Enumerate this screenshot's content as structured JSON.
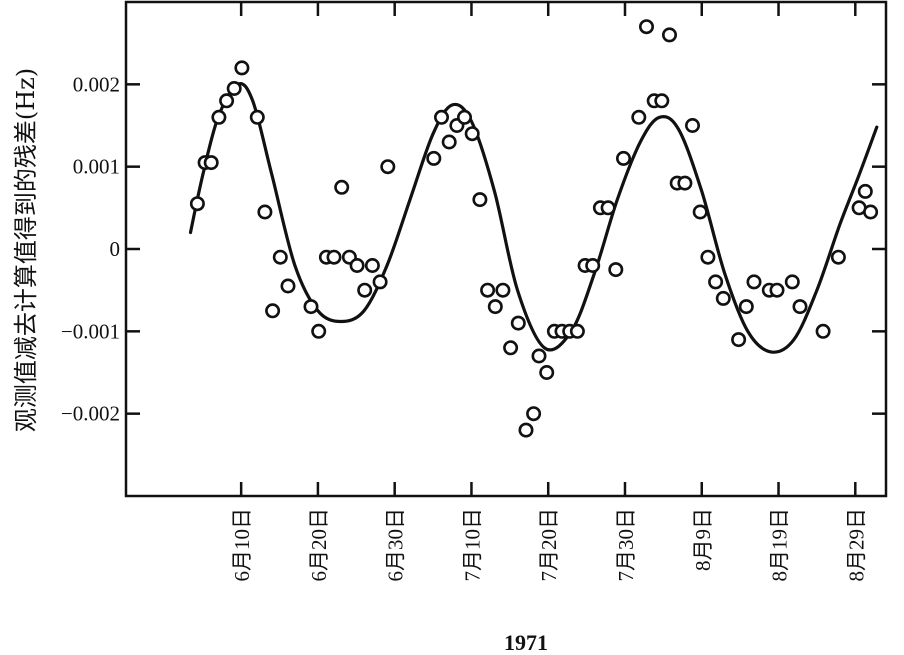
{
  "chart_data": {
    "type": "scatter",
    "title": "",
    "xlabel": "1971",
    "ylabel": "观测值减去计算值得到的残差(Hz)",
    "xlim": [
      146,
      245
    ],
    "ylim": [
      -0.003,
      0.003
    ],
    "grid": false,
    "legend": "none",
    "x_ticks": [
      {
        "day": 161,
        "label": "6月10日"
      },
      {
        "day": 171,
        "label": "6月20日"
      },
      {
        "day": 181,
        "label": "6月30日"
      },
      {
        "day": 191,
        "label": "7月10日"
      },
      {
        "day": 201,
        "label": "7月20日"
      },
      {
        "day": 211,
        "label": "7月30日"
      },
      {
        "day": 221,
        "label": "8月9日"
      },
      {
        "day": 231,
        "label": "8月19日"
      },
      {
        "day": 241,
        "label": "8月29日"
      }
    ],
    "y_ticks": [
      {
        "value": 0.002,
        "label": "0.002"
      },
      {
        "value": 0.001,
        "label": "0.001"
      },
      {
        "value": 0,
        "label": "0"
      },
      {
        "value": -0.001,
        "label": "−0.001"
      },
      {
        "value": -0.002,
        "label": "−0.002"
      }
    ],
    "series": [
      {
        "kind": "scatter",
        "marker": "open-circle",
        "color": "#111111",
        "points": [
          {
            "x": 155.3,
            "y": 0.00055
          },
          {
            "x": 156.3,
            "y": 0.00105
          },
          {
            "x": 157.1,
            "y": 0.00105
          },
          {
            "x": 158.1,
            "y": 0.0016
          },
          {
            "x": 159.1,
            "y": 0.0018
          },
          {
            "x": 160.1,
            "y": 0.00195
          },
          {
            "x": 161.1,
            "y": 0.0022
          },
          {
            "x": 163.1,
            "y": 0.0016
          },
          {
            "x": 164.1,
            "y": 0.00045
          },
          {
            "x": 165.1,
            "y": -0.00075
          },
          {
            "x": 166.1,
            "y": -0.0001
          },
          {
            "x": 167.1,
            "y": -0.00045
          },
          {
            "x": 170.1,
            "y": -0.0007
          },
          {
            "x": 171.1,
            "y": -0.001
          },
          {
            "x": 172.1,
            "y": -0.0001
          },
          {
            "x": 173.1,
            "y": -0.0001
          },
          {
            "x": 174.1,
            "y": 0.00075
          },
          {
            "x": 175.1,
            "y": -0.0001
          },
          {
            "x": 176.1,
            "y": -0.0002
          },
          {
            "x": 177.1,
            "y": -0.0005
          },
          {
            "x": 178.1,
            "y": -0.0002
          },
          {
            "x": 179.1,
            "y": -0.0004
          },
          {
            "x": 180.1,
            "y": 0.001
          },
          {
            "x": 186.1,
            "y": 0.0011
          },
          {
            "x": 187.1,
            "y": 0.0016
          },
          {
            "x": 188.1,
            "y": 0.0013
          },
          {
            "x": 189.1,
            "y": 0.0015
          },
          {
            "x": 190.1,
            "y": 0.0016
          },
          {
            "x": 191.1,
            "y": 0.0014
          },
          {
            "x": 192.1,
            "y": 0.0006
          },
          {
            "x": 193.1,
            "y": -0.0005
          },
          {
            "x": 194.1,
            "y": -0.0007
          },
          {
            "x": 195.1,
            "y": -0.0005
          },
          {
            "x": 196.1,
            "y": -0.0012
          },
          {
            "x": 197.1,
            "y": -0.0009
          },
          {
            "x": 198.1,
            "y": -0.0022
          },
          {
            "x": 199.1,
            "y": -0.002
          },
          {
            "x": 199.8,
            "y": -0.0013
          },
          {
            "x": 200.8,
            "y": -0.0015
          },
          {
            "x": 201.8,
            "y": -0.001
          },
          {
            "x": 202.8,
            "y": -0.001
          },
          {
            "x": 203.8,
            "y": -0.001
          },
          {
            "x": 204.8,
            "y": -0.001
          },
          {
            "x": 205.8,
            "y": -0.0002
          },
          {
            "x": 206.8,
            "y": -0.0002
          },
          {
            "x": 207.8,
            "y": 0.0005
          },
          {
            "x": 208.8,
            "y": 0.0005
          },
          {
            "x": 209.8,
            "y": -0.00025
          },
          {
            "x": 210.8,
            "y": 0.0011
          },
          {
            "x": 212.8,
            "y": 0.0016
          },
          {
            "x": 213.8,
            "y": 0.0027
          },
          {
            "x": 214.8,
            "y": 0.0018
          },
          {
            "x": 215.8,
            "y": 0.0018
          },
          {
            "x": 216.8,
            "y": 0.0026
          },
          {
            "x": 217.8,
            "y": 0.0008
          },
          {
            "x": 218.8,
            "y": 0.0008
          },
          {
            "x": 219.8,
            "y": 0.0015
          },
          {
            "x": 220.8,
            "y": 0.00045
          },
          {
            "x": 221.8,
            "y": -0.0001
          },
          {
            "x": 222.8,
            "y": -0.0004
          },
          {
            "x": 223.8,
            "y": -0.0006
          },
          {
            "x": 225.8,
            "y": -0.0011
          },
          {
            "x": 226.8,
            "y": -0.0007
          },
          {
            "x": 227.8,
            "y": -0.0004
          },
          {
            "x": 229.8,
            "y": -0.0005
          },
          {
            "x": 230.8,
            "y": -0.0005
          },
          {
            "x": 232.8,
            "y": -0.0004
          },
          {
            "x": 233.8,
            "y": -0.0007
          },
          {
            "x": 236.8,
            "y": -0.001
          },
          {
            "x": 238.8,
            "y": -0.0001
          },
          {
            "x": 241.5,
            "y": 0.0005
          },
          {
            "x": 242.3,
            "y": 0.0007
          },
          {
            "x": 243.0,
            "y": 0.00045
          }
        ]
      },
      {
        "kind": "line",
        "color": "#111111",
        "points": [
          {
            "x": 154.4,
            "y": 0.0002
          },
          {
            "x": 156.0,
            "y": 0.0009
          },
          {
            "x": 158.0,
            "y": 0.0016
          },
          {
            "x": 160.5,
            "y": 0.002
          },
          {
            "x": 162.5,
            "y": 0.0018
          },
          {
            "x": 165.0,
            "y": 0.0009
          },
          {
            "x": 168.0,
            "y": -0.0002
          },
          {
            "x": 171.0,
            "y": -0.00075
          },
          {
            "x": 174.0,
            "y": -0.00088
          },
          {
            "x": 177.0,
            "y": -0.00075
          },
          {
            "x": 180.0,
            "y": -0.0002
          },
          {
            "x": 183.0,
            "y": 0.0006
          },
          {
            "x": 186.0,
            "y": 0.0014
          },
          {
            "x": 188.5,
            "y": 0.00175
          },
          {
            "x": 191.0,
            "y": 0.00155
          },
          {
            "x": 194.0,
            "y": 0.0007
          },
          {
            "x": 197.0,
            "y": -0.0005
          },
          {
            "x": 200.5,
            "y": -0.0012
          },
          {
            "x": 204.0,
            "y": -0.001
          },
          {
            "x": 207.0,
            "y": -0.0003
          },
          {
            "x": 210.0,
            "y": 0.0006
          },
          {
            "x": 213.0,
            "y": 0.0013
          },
          {
            "x": 215.5,
            "y": 0.0016
          },
          {
            "x": 218.0,
            "y": 0.00145
          },
          {
            "x": 221.0,
            "y": 0.0007
          },
          {
            "x": 224.0,
            "y": -0.0003
          },
          {
            "x": 227.0,
            "y": -0.001
          },
          {
            "x": 230.0,
            "y": -0.00125
          },
          {
            "x": 233.0,
            "y": -0.0011
          },
          {
            "x": 236.0,
            "y": -0.0005
          },
          {
            "x": 239.0,
            "y": 0.0003
          },
          {
            "x": 241.5,
            "y": 0.0009
          },
          {
            "x": 243.8,
            "y": 0.00148
          }
        ]
      }
    ]
  }
}
